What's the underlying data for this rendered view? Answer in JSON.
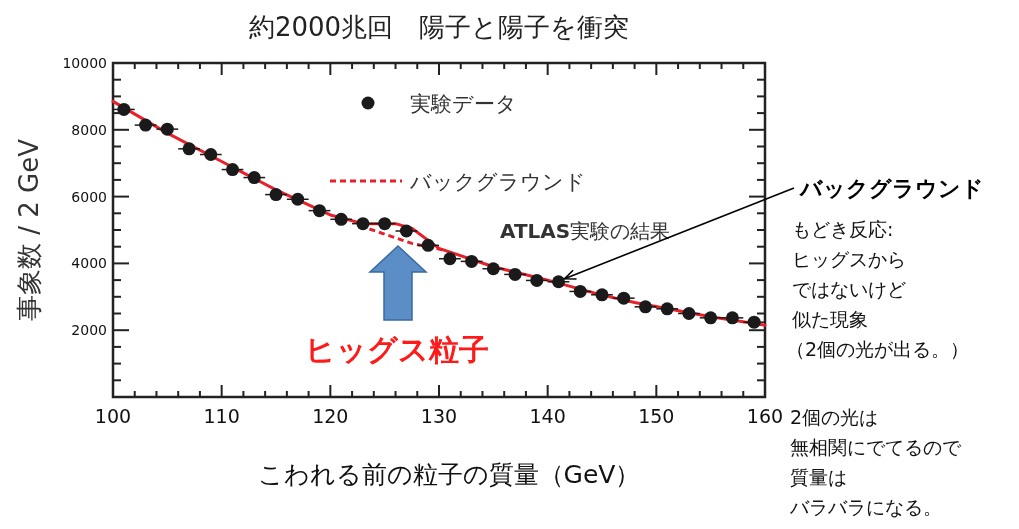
{
  "chart_data": {
    "type": "scatter",
    "title": "約2000兆回　陽子と陽子を衝突",
    "xlabel": "こわれる前の粒子の質量（GeV）",
    "ylabel": "事象数 / 2 GeV",
    "xlim": [
      100,
      160
    ],
    "ylim": [
      0,
      10000
    ],
    "xticks": [
      100,
      {
        "value": 102,
        "label": null
      },
      {
        "value": 104,
        "label": null
      },
      {
        "value": 106,
        "label": null
      },
      {
        "value": 108,
        "label": null
      },
      110,
      {
        "value": 112,
        "label": null
      },
      {
        "value": 114,
        "label": null
      },
      {
        "value": 116,
        "label": null
      },
      {
        "value": 118,
        "label": null
      },
      120,
      {
        "value": 122,
        "label": null
      },
      {
        "value": 124,
        "label": null
      },
      {
        "value": 126,
        "label": null
      },
      {
        "value": 128,
        "label": null
      },
      130,
      {
        "value": 132,
        "label": null
      },
      {
        "value": 134,
        "label": null
      },
      {
        "value": 136,
        "label": null
      },
      {
        "value": 138,
        "label": null
      },
      140,
      {
        "value": 142,
        "label": null
      },
      {
        "value": 144,
        "label": null
      },
      {
        "value": 146,
        "label": null
      },
      {
        "value": 148,
        "label": null
      },
      150,
      {
        "value": 152,
        "label": null
      },
      {
        "value": 154,
        "label": null
      },
      {
        "value": 156,
        "label": null
      },
      {
        "value": 158,
        "label": null
      },
      160
    ],
    "yticks": [
      {
        "value": 0,
        "label": null
      },
      {
        "value": 500,
        "label": null
      },
      {
        "value": 1000,
        "label": null
      },
      {
        "value": 1500,
        "label": null
      },
      2000,
      {
        "value": 2500,
        "label": null
      },
      {
        "value": 3000,
        "label": null
      },
      {
        "value": 3500,
        "label": null
      },
      4000,
      {
        "value": 4500,
        "label": null
      },
      {
        "value": 5000,
        "label": null
      },
      {
        "value": 5500,
        "label": null
      },
      6000,
      {
        "value": 6500,
        "label": null
      },
      {
        "value": 7000,
        "label": null
      },
      {
        "value": 7500,
        "label": null
      },
      8000,
      {
        "value": 8500,
        "label": null
      },
      {
        "value": 9000,
        "label": null
      },
      {
        "value": 9500,
        "label": null
      },
      10000
    ],
    "grid": false,
    "legend": "top",
    "marker": "circle",
    "series": [
      {
        "name": "実験データ",
        "color": "#1a1a1a",
        "x": [
          101,
          103,
          105,
          107,
          109,
          111,
          113,
          115,
          117,
          119,
          121,
          123,
          125,
          127,
          129,
          131,
          133,
          135,
          137,
          139,
          141,
          143,
          145,
          147,
          149,
          151,
          153,
          155,
          157,
          159
        ],
        "values": [
          8610,
          8140,
          8020,
          7430,
          7260,
          6810,
          6570,
          6060,
          5920,
          5580,
          5320,
          5190,
          5190,
          4970,
          4540,
          4140,
          4060,
          3840,
          3670,
          3490,
          3450,
          3160,
          3060,
          2960,
          2700,
          2640,
          2500,
          2370,
          2370,
          2240
        ],
        "xerrors": [
          1,
          1,
          1,
          1,
          1,
          1,
          1,
          1,
          1,
          1,
          1,
          1,
          1,
          1,
          1,
          1,
          1,
          1,
          1,
          1,
          1,
          1,
          1,
          1,
          1,
          1,
          1,
          1,
          1,
          1
        ]
      },
      {
        "type": "line",
        "color": "#e8202a",
        "line_style": "solid",
        "marker": "none",
        "x": [
          100,
          105,
          110,
          115,
          120,
          123,
          126,
          127.5,
          130,
          135,
          140,
          145,
          148,
          155,
          160
        ],
        "values": [
          8850,
          7900,
          7050,
          6200,
          5450,
          5190,
          5190,
          5050,
          4450,
          3900,
          3500,
          3050,
          2830,
          2400,
          2150
        ]
      },
      {
        "type": "line",
        "name": "バックグラウンド",
        "color": "#e8202a",
        "line_style": "dashed",
        "marker": "none",
        "x": [
          123.6,
          127.5,
          130.4
        ],
        "values": [
          5030,
          4600,
          4400
        ]
      }
    ],
    "annotations": [
      "**ATLAS**実験の結果",
      {
        "text": "バックグラウンド",
        "x": 141,
        "y": 3452
      },
      "もどき反応:",
      "ヒッグスから",
      "ではないけど",
      "似た現象",
      "（2個の光が出る。）",
      "ヒッグス粒子",
      "2個の光は",
      "無相関にでてるので",
      "質量は",
      "バラバラになる。"
    ]
  }
}
